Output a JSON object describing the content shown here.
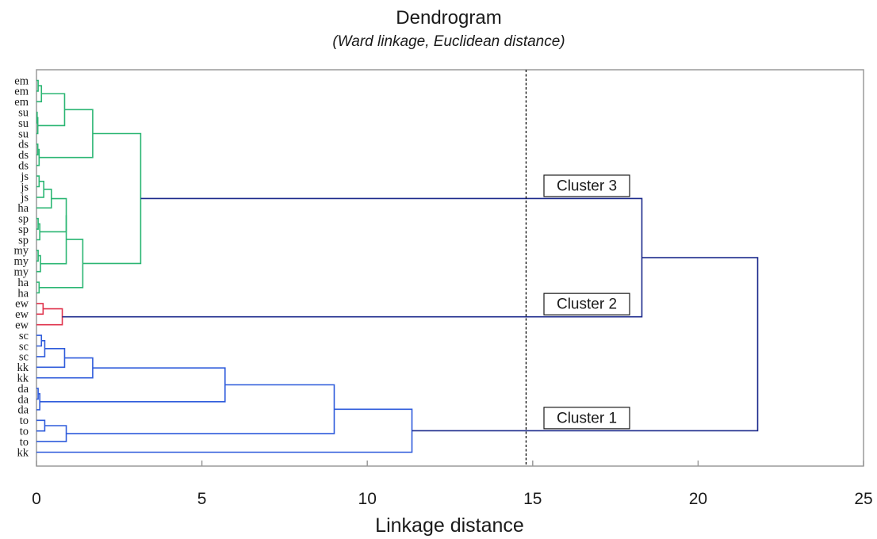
{
  "chart_data": {
    "type": "dendrogram",
    "title": "Dendrogram",
    "subtitle": "(Ward linkage, Euclidean distance)",
    "xlabel": "Linkage distance",
    "xlim": [
      0,
      25
    ],
    "xticks": [
      0,
      5,
      10,
      15,
      20,
      25
    ],
    "cut_line": 14.8,
    "leaves": [
      "em",
      "em",
      "em",
      "su",
      "su",
      "su",
      "ds",
      "ds",
      "ds",
      "js",
      "js",
      "js",
      "ha",
      "sp",
      "sp",
      "sp",
      "my",
      "my",
      "my",
      "ha",
      "ha",
      "ew",
      "ew",
      "ew",
      "sc",
      "sc",
      "sc",
      "kk",
      "kk",
      "da",
      "da",
      "da",
      "to",
      "to",
      "to",
      "kk"
    ],
    "merges": [
      {
        "id": "n1",
        "children": [
          "L0",
          "L1"
        ],
        "height": 0.05,
        "group": "cluster3"
      },
      {
        "id": "n2",
        "children": [
          "n1",
          "L2"
        ],
        "height": 0.15,
        "group": "cluster3"
      },
      {
        "id": "n3",
        "children": [
          "L3",
          "L4"
        ],
        "height": 0.02,
        "group": "cluster3"
      },
      {
        "id": "n4",
        "children": [
          "n3",
          "L5"
        ],
        "height": 0.04,
        "group": "cluster3"
      },
      {
        "id": "n5",
        "children": [
          "n2",
          "n4"
        ],
        "height": 0.85,
        "group": "cluster3"
      },
      {
        "id": "n6",
        "children": [
          "L6",
          "L7"
        ],
        "height": 0.04,
        "group": "cluster3"
      },
      {
        "id": "n7",
        "children": [
          "n6",
          "L8"
        ],
        "height": 0.08,
        "group": "cluster3"
      },
      {
        "id": "n8",
        "children": [
          "n5",
          "n7"
        ],
        "height": 1.7,
        "group": "cluster3"
      },
      {
        "id": "n9",
        "children": [
          "L9",
          "L10"
        ],
        "height": 0.08,
        "group": "cluster3"
      },
      {
        "id": "n10",
        "children": [
          "n9",
          "L11"
        ],
        "height": 0.22,
        "group": "cluster3"
      },
      {
        "id": "n11",
        "children": [
          "n10",
          "L12"
        ],
        "height": 0.45,
        "group": "cluster3"
      },
      {
        "id": "n12",
        "children": [
          "L13",
          "L14"
        ],
        "height": 0.05,
        "group": "cluster3"
      },
      {
        "id": "n13",
        "children": [
          "n12",
          "L15"
        ],
        "height": 0.1,
        "group": "cluster3"
      },
      {
        "id": "n14",
        "children": [
          "n11",
          "n13"
        ],
        "height": 0.9,
        "group": "cluster3"
      },
      {
        "id": "n15",
        "children": [
          "L16",
          "L17"
        ],
        "height": 0.05,
        "group": "cluster3"
      },
      {
        "id": "n16",
        "children": [
          "n15",
          "L18"
        ],
        "height": 0.12,
        "group": "cluster3"
      },
      {
        "id": "n17",
        "children": [
          "n14",
          "n16"
        ],
        "height": 0.9,
        "group": "cluster3"
      },
      {
        "id": "n18",
        "children": [
          "L19",
          "L20"
        ],
        "height": 0.08,
        "group": "cluster3"
      },
      {
        "id": "n19",
        "children": [
          "n17",
          "n18"
        ],
        "height": 1.4,
        "group": "cluster3"
      },
      {
        "id": "n20",
        "children": [
          "n8",
          "n19"
        ],
        "height": 3.15,
        "group": "cluster3"
      },
      {
        "id": "n21",
        "children": [
          "L21",
          "L22"
        ],
        "height": 0.2,
        "group": "cluster2"
      },
      {
        "id": "n22",
        "children": [
          "n21",
          "L23"
        ],
        "height": 0.78,
        "group": "cluster2"
      },
      {
        "id": "n23",
        "children": [
          "L24",
          "L25"
        ],
        "height": 0.15,
        "group": "cluster1"
      },
      {
        "id": "n24",
        "children": [
          "n23",
          "L26"
        ],
        "height": 0.25,
        "group": "cluster1"
      },
      {
        "id": "n25",
        "children": [
          "n24",
          "L27"
        ],
        "height": 0.85,
        "group": "cluster1"
      },
      {
        "id": "n26",
        "children": [
          "n25",
          "L28"
        ],
        "height": 1.7,
        "group": "cluster1"
      },
      {
        "id": "n27",
        "children": [
          "L29",
          "L30"
        ],
        "height": 0.05,
        "group": "cluster1"
      },
      {
        "id": "n28",
        "children": [
          "n27",
          "L31"
        ],
        "height": 0.1,
        "group": "cluster1"
      },
      {
        "id": "n29",
        "children": [
          "n26",
          "n28"
        ],
        "height": 5.7,
        "group": "cluster1"
      },
      {
        "id": "n30",
        "children": [
          "L32",
          "L33"
        ],
        "height": 0.25,
        "group": "cluster1"
      },
      {
        "id": "n31",
        "children": [
          "n30",
          "L34"
        ],
        "height": 0.9,
        "group": "cluster1"
      },
      {
        "id": "n32",
        "children": [
          "n29",
          "n31"
        ],
        "height": 9.0,
        "group": "cluster1"
      },
      {
        "id": "n33",
        "children": [
          "n32",
          "L35"
        ],
        "height": 11.35,
        "group": "cluster1"
      },
      {
        "id": "n34",
        "children": [
          "n20",
          "n22"
        ],
        "height": 18.3,
        "group": "link"
      },
      {
        "id": "n35",
        "children": [
          "n34",
          "n33"
        ],
        "height": 21.8,
        "group": "link"
      }
    ],
    "cluster_labels": [
      {
        "text": "Cluster 3",
        "node": "n20"
      },
      {
        "text": "Cluster 2",
        "node": "n22"
      },
      {
        "text": "Cluster 1",
        "node": "n33"
      }
    ],
    "colors": {
      "cluster3": "#2bb673",
      "cluster2": "#e0334c",
      "cluster1": "#2e5bdb",
      "link": "#1c2a8c",
      "cut_line": "#000000",
      "axis": "#9a9a9a"
    }
  }
}
